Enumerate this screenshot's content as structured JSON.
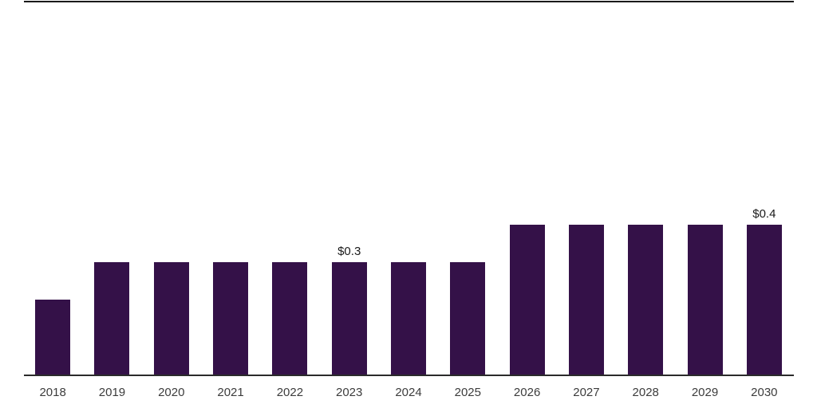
{
  "chart_data": {
    "type": "bar",
    "categories": [
      "2018",
      "2019",
      "2020",
      "2021",
      "2022",
      "2023",
      "2024",
      "2025",
      "2026",
      "2027",
      "2028",
      "2029",
      "2030"
    ],
    "values": [
      0.2,
      0.3,
      0.3,
      0.3,
      0.3,
      0.3,
      0.3,
      0.3,
      0.4,
      0.4,
      0.4,
      0.4,
      0.4
    ],
    "data_labels": [
      {
        "category": "2023",
        "text": "$0.3"
      },
      {
        "category": "2030",
        "text": "$0.4"
      }
    ],
    "title": "",
    "xlabel": "",
    "ylabel": "",
    "ylim": [
      0,
      1
    ],
    "y_axis_visible": false,
    "gridlines": false,
    "legend": null
  },
  "colors": {
    "bar": "#341148",
    "axis_line": "#2b2b2b",
    "top_rule": "#1a1a1a",
    "data_label_text": "#1a1a1a",
    "tick_label_text": "#3c3c3c",
    "background": "#ffffff"
  }
}
